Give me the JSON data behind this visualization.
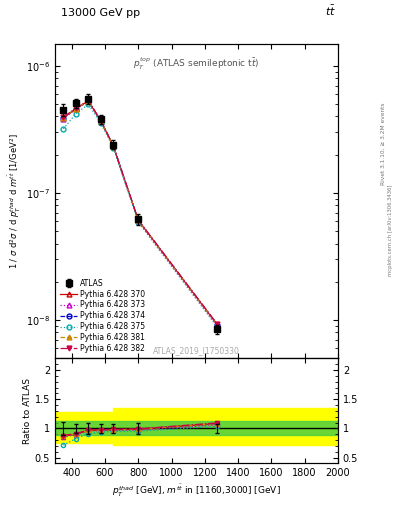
{
  "title_top": "13000 GeV pp",
  "title_top_right": "tt",
  "annotation_top": "$p_T^{top}$ (ATLAS semileptonic t$\\bar{t}$)",
  "annotation_watermark": "ATLAS_2019_I1750330",
  "right_label_top": "Rivet 3.1.10, ≥ 3.2M events",
  "right_label_bottom": "mcplots.cern.ch [arXiv:1306.3436]",
  "xlim": [
    300,
    2000
  ],
  "ylim_main": [
    5e-09,
    1.5e-06
  ],
  "ylim_ratio": [
    0.4,
    2.2
  ],
  "x_atlas": [
    350,
    425,
    500,
    575,
    650,
    800,
    1275
  ],
  "y_atlas": [
    4.5e-07,
    5.1e-07,
    5.5e-07,
    3.8e-07,
    2.4e-07,
    6.2e-08,
    8.5e-09
  ],
  "y_atlas_err": [
    5e-08,
    4e-08,
    5e-08,
    3e-08,
    2e-08,
    6e-09,
    7e-10
  ],
  "x_mc": [
    350,
    425,
    500,
    575,
    650,
    800,
    1275
  ],
  "mc_sets": [
    {
      "label": "Pythia 6.428 370",
      "color": "#cc0000",
      "linestyle": "-",
      "marker": "^",
      "filled": false,
      "y": [
        3.9e-07,
        4.6e-07,
        5.3e-07,
        3.7e-07,
        2.35e-07,
        6.1e-08,
        9.2e-09
      ]
    },
    {
      "label": "Pythia 6.428 373",
      "color": "#cc00cc",
      "linestyle": ":",
      "marker": "^",
      "filled": false,
      "y": [
        3.85e-07,
        4.55e-07,
        5.25e-07,
        3.65e-07,
        2.33e-07,
        6e-08,
        9e-09
      ]
    },
    {
      "label": "Pythia 6.428 374",
      "color": "#0000cc",
      "linestyle": "--",
      "marker": "o",
      "filled": false,
      "y": [
        3.9e-07,
        4.6e-07,
        5.3e-07,
        3.7e-07,
        2.35e-07,
        6.1e-08,
        9.2e-09
      ]
    },
    {
      "label": "Pythia 6.428 375",
      "color": "#00aaaa",
      "linestyle": ":",
      "marker": "o",
      "filled": false,
      "y": [
        3.2e-07,
        4.2e-07,
        5e-07,
        3.55e-07,
        2.28e-07,
        5.9e-08,
        8.8e-09
      ]
    },
    {
      "label": "Pythia 6.428 381",
      "color": "#cc8800",
      "linestyle": "--",
      "marker": "^",
      "filled": true,
      "y": [
        3.9e-07,
        4.6e-07,
        5.3e-07,
        3.7e-07,
        2.35e-07,
        6.1e-08,
        9.2e-09
      ]
    },
    {
      "label": "Pythia 6.428 382",
      "color": "#cc0044",
      "linestyle": "-.",
      "marker": "v",
      "filled": true,
      "y": [
        3.95e-07,
        4.65e-07,
        5.35e-07,
        3.72e-07,
        2.36e-07,
        6.15e-08,
        9.3e-09
      ]
    }
  ],
  "ratio_green_lo": 0.88,
  "ratio_green_hi": 1.12,
  "ratio_yellow_lo": 0.75,
  "ratio_yellow_hi": 1.28,
  "ratio_yellow2_lo": 0.72,
  "ratio_yellow2_hi": 1.35,
  "ratio_band1_xlo": 300,
  "ratio_band1_xhi": 650,
  "ratio_band2_xlo": 650,
  "ratio_band2_xhi": 2000
}
